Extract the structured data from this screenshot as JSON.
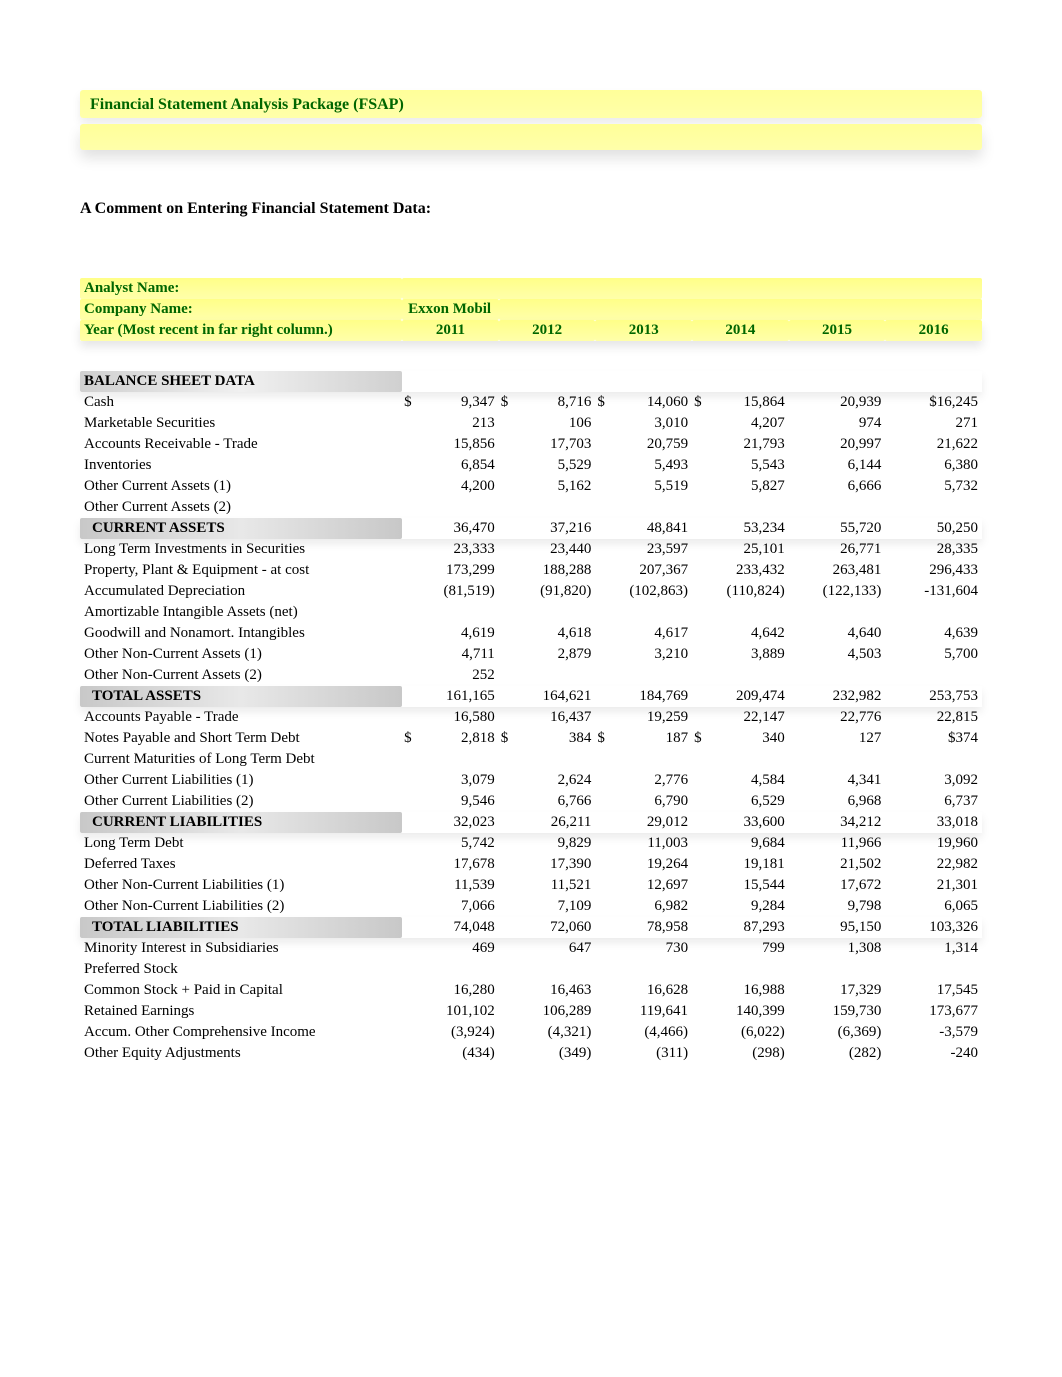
{
  "header": {
    "title": "Financial Statement Analysis Package (FSAP)",
    "comment_heading": "A Comment on Entering Financial Statement Data:"
  },
  "meta": {
    "analyst_label": "Analyst Name:",
    "company_label": "Company Name:",
    "company_name": "Exxon Mobil",
    "year_label": "Year (Most recent in far right column.)",
    "years": [
      "2011",
      "2012",
      "2013",
      "2014",
      "2015",
      "2016"
    ]
  },
  "styling": {
    "band_bg": "#ffff99",
    "title_color": "#006600",
    "section_bg": "#d0d0d0",
    "font_family": "Times New Roman",
    "body_fontsize": 15,
    "title_fontsize": 16
  },
  "sections": {
    "balance_sheet_label": "BALANCE SHEET DATA",
    "current_assets_label": "CURRENT ASSETS",
    "total_assets_label": "TOTAL ASSETS",
    "current_liab_label": "CURRENT LIABILITIES",
    "total_liab_label": "TOTAL LIABILITIES"
  },
  "rows": [
    {
      "label": "Cash",
      "dollar": true,
      "v": [
        "9,347",
        "8,716",
        "14,060",
        "15,864",
        "20,939",
        "$16,245"
      ],
      "ds": [
        "$",
        "$",
        "$",
        "$",
        "",
        ""
      ]
    },
    {
      "label": "Marketable Securities",
      "v": [
        "213",
        "106",
        "3,010",
        "4,207",
        "974",
        "271"
      ]
    },
    {
      "label": "Accounts Receivable - Trade",
      "v": [
        "15,856",
        "17,703",
        "20,759",
        "21,793",
        "20,997",
        "21,622"
      ]
    },
    {
      "label": "Inventories",
      "v": [
        "6,854",
        "5,529",
        "5,493",
        "5,543",
        "6,144",
        "6,380"
      ]
    },
    {
      "label": "Other Current Assets (1)",
      "v": [
        "4,200",
        "5,162",
        "5,519",
        "5,827",
        "6,666",
        "5,732"
      ]
    },
    {
      "label": "Other Current Assets (2)",
      "v": [
        "",
        "",
        "",
        "",
        "",
        ""
      ]
    },
    {
      "section": "current_assets",
      "v": [
        "36,470",
        "37,216",
        "48,841",
        "53,234",
        "55,720",
        "50,250"
      ]
    },
    {
      "label": "Long Term Investments in Securities",
      "v": [
        "23,333",
        "23,440",
        "23,597",
        "25,101",
        "26,771",
        "28,335"
      ]
    },
    {
      "label": "Property, Plant & Equipment - at cost",
      "v": [
        "173,299",
        "188,288",
        "207,367",
        "233,432",
        "263,481",
        "296,433"
      ]
    },
    {
      "label": "Accumulated Depreciation",
      "v": [
        "(81,519)",
        "(91,820)",
        "(102,863)",
        "(110,824)",
        "(122,133)",
        "-131,604"
      ]
    },
    {
      "label": "Amortizable Intangible Assets (net)",
      "v": [
        "",
        "",
        "",
        "",
        "",
        ""
      ]
    },
    {
      "label": "Goodwill and Nonamort. Intangibles",
      "v": [
        "4,619",
        "4,618",
        "4,617",
        "4,642",
        "4,640",
        "4,639"
      ]
    },
    {
      "label": "Other Non-Current Assets (1)",
      "v": [
        "4,711",
        "2,879",
        "3,210",
        "3,889",
        "4,503",
        "5,700"
      ]
    },
    {
      "label": "Other Non-Current Assets (2)",
      "v": [
        "252",
        "",
        "",
        "",
        "",
        ""
      ]
    },
    {
      "section": "total_assets",
      "v": [
        "161,165",
        "164,621",
        "184,769",
        "209,474",
        "232,982",
        "253,753"
      ]
    },
    {
      "label": "Accounts Payable - Trade",
      "v": [
        "16,580",
        "16,437",
        "19,259",
        "22,147",
        "22,776",
        "22,815"
      ]
    },
    {
      "label": "Notes Payable and Short Term Debt",
      "dollar": true,
      "v": [
        "2,818",
        "384",
        "187",
        "340",
        "127",
        "$374"
      ],
      "ds": [
        "$",
        "$",
        "$",
        "$",
        "",
        ""
      ]
    },
    {
      "label": "Current Maturities of Long Term Debt",
      "v": [
        "",
        "",
        "",
        "",
        "",
        ""
      ]
    },
    {
      "label": "Other Current Liabilities (1)",
      "v": [
        "3,079",
        "2,624",
        "2,776",
        "4,584",
        "4,341",
        "3,092"
      ]
    },
    {
      "label": "Other Current Liabilities (2)",
      "v": [
        "9,546",
        "6,766",
        "6,790",
        "6,529",
        "6,968",
        "6,737"
      ]
    },
    {
      "section": "current_liab",
      "v": [
        "32,023",
        "26,211",
        "29,012",
        "33,600",
        "34,212",
        "33,018"
      ]
    },
    {
      "label": "Long Term Debt",
      "v": [
        "5,742",
        "9,829",
        "11,003",
        "9,684",
        "11,966",
        "19,960"
      ]
    },
    {
      "label": "Deferred Taxes",
      "v": [
        "17,678",
        "17,390",
        "19,264",
        "19,181",
        "21,502",
        "22,982"
      ]
    },
    {
      "label": "Other Non-Current Liabilities (1)",
      "v": [
        "11,539",
        "11,521",
        "12,697",
        "15,544",
        "17,672",
        "21,301"
      ]
    },
    {
      "label": "Other Non-Current Liabilities (2)",
      "v": [
        "7,066",
        "7,109",
        "6,982",
        "9,284",
        "9,798",
        "6,065"
      ]
    },
    {
      "section": "total_liab",
      "v": [
        "74,048",
        "72,060",
        "78,958",
        "87,293",
        "95,150",
        "103,326"
      ]
    },
    {
      "label": "Minority Interest in Subsidiaries",
      "v": [
        "469",
        "647",
        "730",
        "799",
        "1,308",
        "1,314"
      ]
    },
    {
      "label": "Preferred Stock",
      "v": [
        "",
        "",
        "",
        "",
        "",
        ""
      ]
    },
    {
      "label": "Common Stock + Paid in Capital",
      "v": [
        "16,280",
        "16,463",
        "16,628",
        "16,988",
        "17,329",
        "17,545"
      ]
    },
    {
      "label": "Retained Earnings",
      "v": [
        "101,102",
        "106,289",
        "119,641",
        "140,399",
        "159,730",
        "173,677"
      ]
    },
    {
      "label": "Accum. Other Comprehensive Income",
      "v": [
        "(3,924)",
        "(4,321)",
        "(4,466)",
        "(6,022)",
        "(6,369)",
        "-3,579"
      ]
    },
    {
      "label": "Other Equity Adjustments",
      "v": [
        "(434)",
        "(349)",
        "(311)",
        "(298)",
        "(282)",
        "-240"
      ]
    }
  ]
}
